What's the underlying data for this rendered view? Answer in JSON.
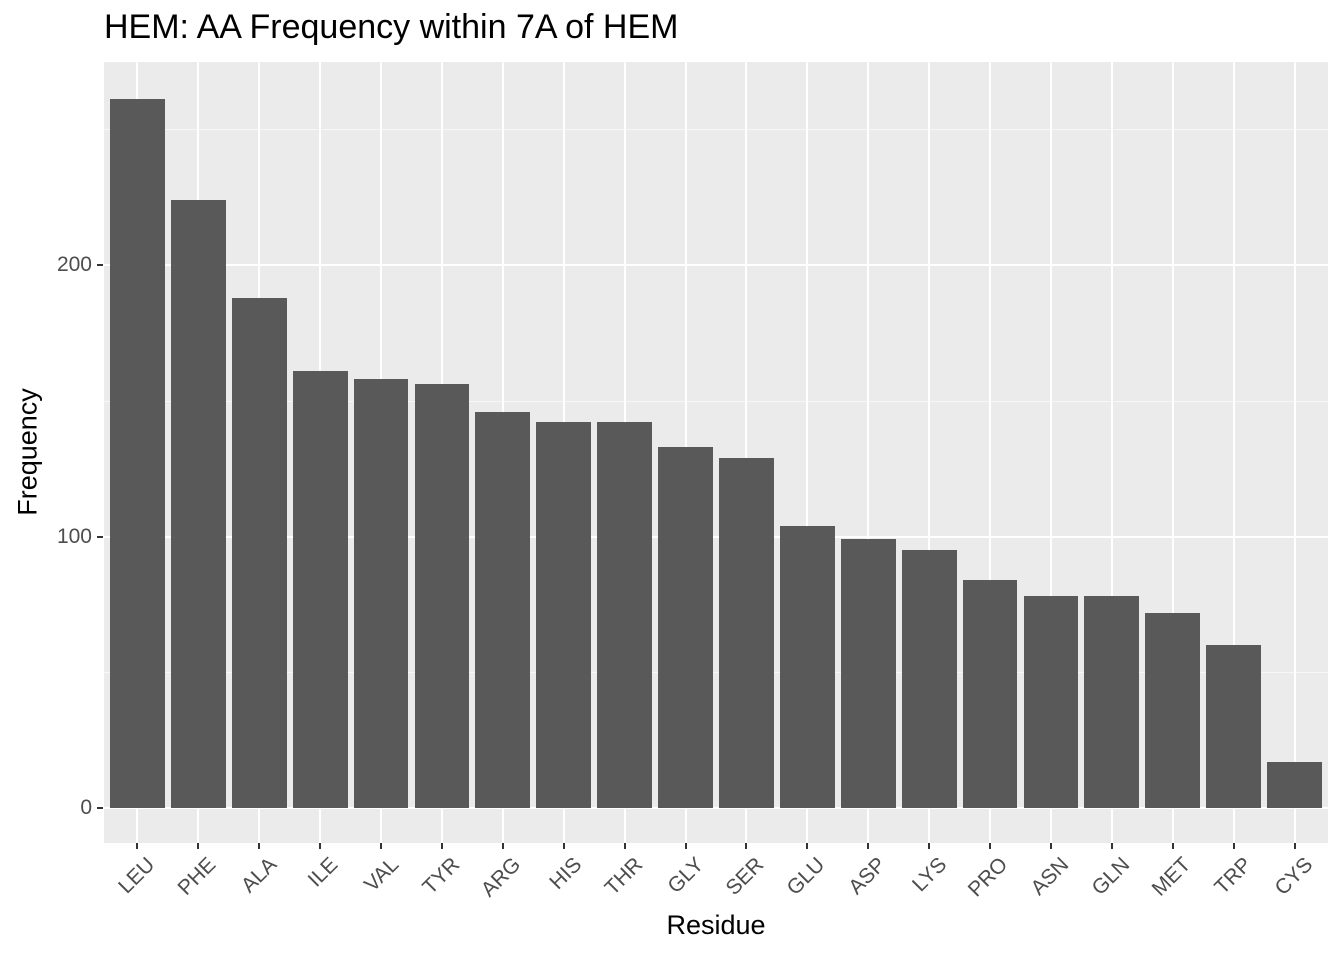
{
  "title": "HEM: AA Frequency within 7A of HEM",
  "chart_data": {
    "type": "bar",
    "title": "HEM: AA Frequency within 7A of HEM",
    "xlabel": "Residue",
    "ylabel": "Frequency",
    "categories": [
      "LEU",
      "PHE",
      "ALA",
      "ILE",
      "VAL",
      "TYR",
      "ARG",
      "HIS",
      "THR",
      "GLY",
      "SER",
      "GLU",
      "ASP",
      "LYS",
      "PRO",
      "ASN",
      "GLN",
      "MET",
      "TRP",
      "CYS"
    ],
    "values": [
      261,
      224,
      188,
      161,
      158,
      156,
      146,
      142,
      142,
      133,
      129,
      104,
      99,
      95,
      84,
      78,
      78,
      72,
      60,
      17
    ],
    "yticks": [
      0,
      100,
      200
    ],
    "ylim": [
      -13,
      274
    ],
    "grid": true,
    "legend": null,
    "bar_color": "#595959",
    "panel_color": "#ebebeb"
  },
  "axes": {
    "xlabel": "Residue",
    "ylabel": "Frequency",
    "ytick_labels": [
      "0",
      "100",
      "200"
    ]
  }
}
